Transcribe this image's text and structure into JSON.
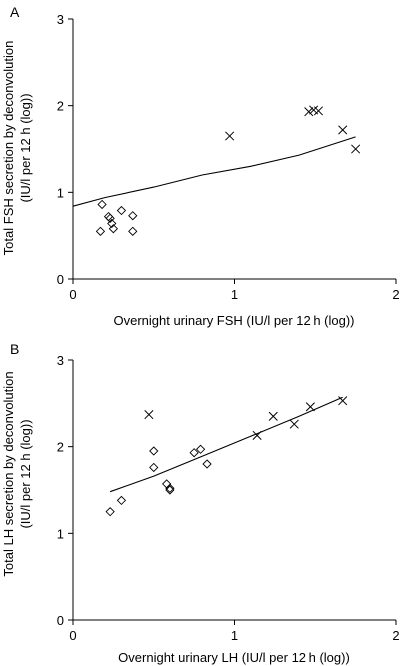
{
  "chart_data": [
    {
      "panel": "A",
      "type": "scatter",
      "xlabel": "Overnight urinary FSH (IU/l per 12 h (log))",
      "ylabel_line1": "Total FSH secretion by deconvolution",
      "ylabel_line2": "(IU/l per 12 h (log))",
      "xlim": [
        0,
        2
      ],
      "ylim": [
        0,
        3
      ],
      "x_ticks": [
        "0",
        "1",
        "2"
      ],
      "y_ticks": [
        "0",
        "1",
        "2",
        "3"
      ],
      "series": [
        {
          "marker": "diamond",
          "points": [
            [
              0.18,
              0.86
            ],
            [
              0.17,
              0.55
            ],
            [
              0.22,
              0.72
            ],
            [
              0.23,
              0.7
            ],
            [
              0.24,
              0.64
            ],
            [
              0.25,
              0.58
            ],
            [
              0.3,
              0.79
            ],
            [
              0.37,
              0.73
            ],
            [
              0.37,
              0.55
            ]
          ]
        },
        {
          "marker": "cross",
          "points": [
            [
              0.97,
              1.65
            ],
            [
              1.46,
              1.93
            ],
            [
              1.49,
              1.95
            ],
            [
              1.52,
              1.94
            ],
            [
              1.67,
              1.72
            ],
            [
              1.75,
              1.5
            ]
          ]
        }
      ],
      "fit_line": [
        [
          0.0,
          0.84
        ],
        [
          0.2,
          0.94
        ],
        [
          0.5,
          1.06
        ],
        [
          0.8,
          1.2
        ],
        [
          1.1,
          1.3
        ],
        [
          1.4,
          1.43
        ],
        [
          1.75,
          1.64
        ]
      ]
    },
    {
      "panel": "B",
      "type": "scatter",
      "xlabel": "Overnight urinary  LH (IU/l per 12 h (log))",
      "ylabel_line1": "Total LH secretion by deconvolution",
      "ylabel_line2": "(IU/l per 12 h (log))",
      "xlim": [
        0,
        2
      ],
      "ylim": [
        0,
        3
      ],
      "x_ticks": [
        "0",
        "1",
        "2"
      ],
      "y_ticks": [
        "0",
        "1",
        "2",
        "3"
      ],
      "series": [
        {
          "marker": "diamond",
          "points": [
            [
              0.23,
              1.25
            ],
            [
              0.3,
              1.38
            ],
            [
              0.5,
              1.95
            ],
            [
              0.5,
              1.76
            ],
            [
              0.58,
              1.57
            ],
            [
              0.6,
              1.52
            ],
            [
              0.6,
              1.5
            ],
            [
              0.75,
              1.93
            ],
            [
              0.79,
              1.97
            ],
            [
              0.83,
              1.8
            ]
          ]
        },
        {
          "marker": "cross",
          "points": [
            [
              0.47,
              2.37
            ],
            [
              1.14,
              2.13
            ],
            [
              1.24,
              2.35
            ],
            [
              1.37,
              2.26
            ],
            [
              1.47,
              2.46
            ],
            [
              1.67,
              2.53
            ]
          ]
        }
      ],
      "fit_line": [
        [
          0.23,
          1.48
        ],
        [
          0.5,
          1.66
        ],
        [
          0.8,
          1.89
        ],
        [
          1.1,
          2.12
        ],
        [
          1.4,
          2.35
        ],
        [
          1.67,
          2.57
        ]
      ]
    }
  ]
}
